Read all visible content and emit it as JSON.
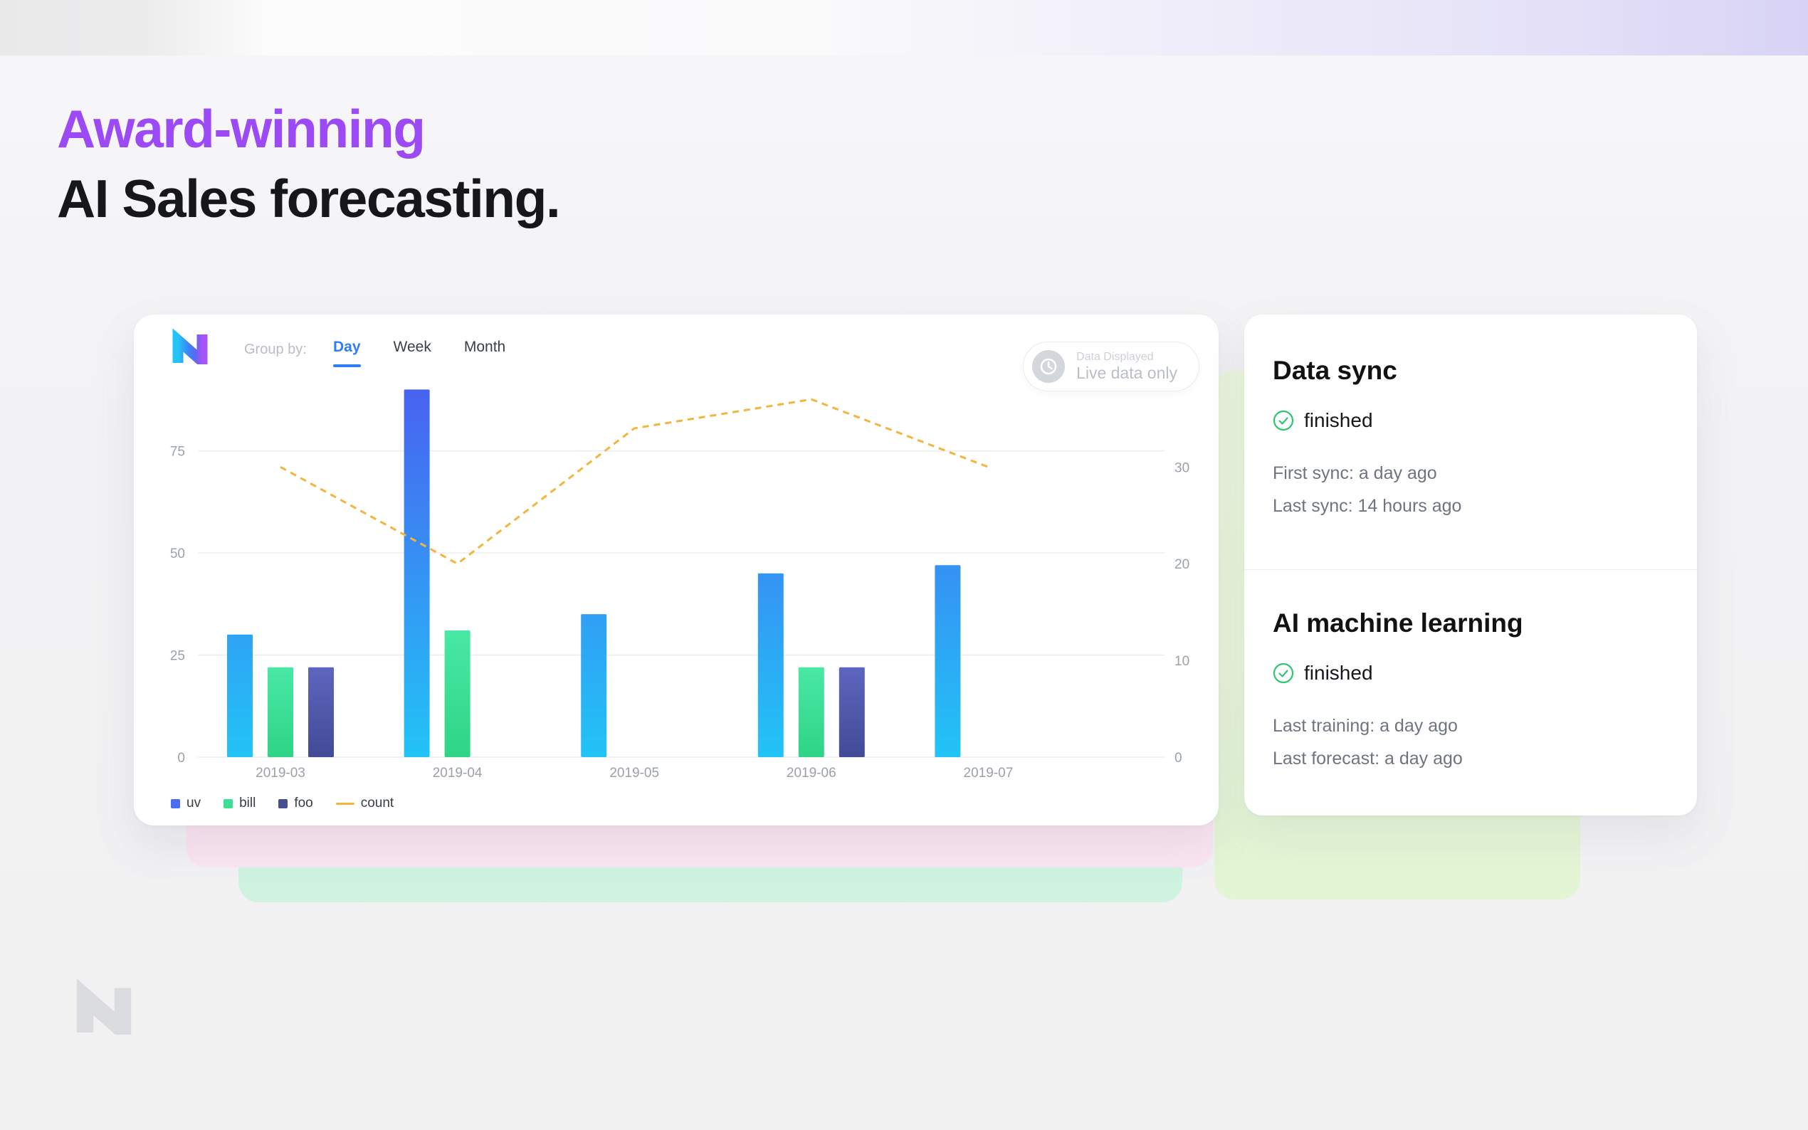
{
  "page": {
    "heading_accent": "Award-winning",
    "heading_main": "AI Sales forecasting."
  },
  "dashboard": {
    "group_by_label": "Group by:",
    "tabs": [
      {
        "label": "Day",
        "active": true
      },
      {
        "label": "Week",
        "active": false
      },
      {
        "label": "Month",
        "active": false
      }
    ],
    "data_displayed": {
      "label": "Data Displayed",
      "value": "Live data only"
    }
  },
  "chart_data": {
    "type": "bar",
    "subtype": "grouped bars with dashed line overlay on secondary axis",
    "categories": [
      "2019-03",
      "2019-04",
      "2019-05",
      "2019-06",
      "2019-07"
    ],
    "bar_series": [
      {
        "name": "uv",
        "color": "#4a6cf0",
        "values": [
          30,
          90,
          35,
          45,
          47
        ]
      },
      {
        "name": "bill",
        "color": "#3ddf97",
        "values": [
          22,
          31,
          null,
          22,
          null
        ]
      },
      {
        "name": "foo",
        "color": "#46508f",
        "values": [
          22,
          null,
          null,
          22,
          null
        ]
      }
    ],
    "line_series": {
      "name": "count",
      "color": "#f2b53d",
      "style": "dashed",
      "axis": "right",
      "values": [
        30,
        20,
        34,
        37,
        30
      ]
    },
    "left_axis": {
      "ticks": [
        0,
        25,
        50,
        75
      ],
      "range": [
        0,
        100
      ]
    },
    "right_axis": {
      "ticks": [
        0,
        10,
        20,
        30
      ],
      "range": [
        0,
        45
      ]
    },
    "grid": "horizontal",
    "legend_position": "bottom-left"
  },
  "sync_panel": {
    "sections": [
      {
        "title": "Data sync",
        "status": "finished",
        "meta": [
          "First sync: a day ago",
          "Last sync: 14 hours ago"
        ]
      },
      {
        "title": "AI machine learning",
        "status": "finished",
        "meta": [
          "Last training: a day ago",
          "Last forecast: a day ago"
        ]
      }
    ],
    "status_color": "#2ec573"
  }
}
